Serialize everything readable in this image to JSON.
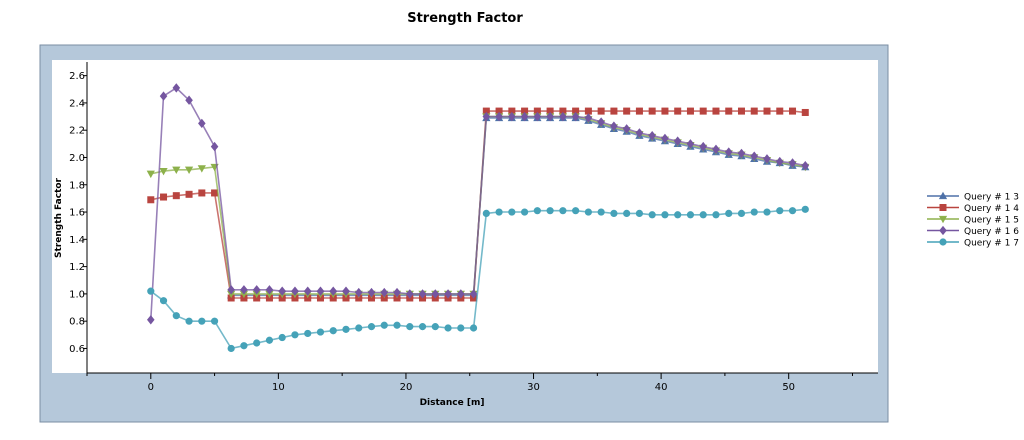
{
  "chart_data": {
    "type": "line",
    "title": "Strength Factor",
    "xlabel": "Distance [m]",
    "ylabel": "Strength Factor",
    "xlim": [
      -5,
      57
    ],
    "ylim": [
      0.42,
      2.7
    ],
    "xticks": [
      0,
      10,
      20,
      30,
      40,
      50
    ],
    "yticks": [
      0.6,
      0.8,
      1.0,
      1.2,
      1.4,
      1.6,
      1.8,
      2.0,
      2.2,
      2.4,
      2.6
    ],
    "xtick_labels": [
      "0",
      "10",
      "20",
      "30",
      "40",
      "50"
    ],
    "ytick_labels": [
      "0.6",
      "0.8",
      "1.0",
      "1.2",
      "1.4",
      "1.6",
      "1.8",
      "2.0",
      "2.2",
      "2.4",
      "2.6"
    ],
    "grid": false,
    "legend_position": "right",
    "series": [
      {
        "name": "Query # 1 3",
        "color": "#4e71a8",
        "marker": "triangle-up",
        "x": [
          6.3,
          7.3,
          8.3,
          9.3,
          10.3,
          11.3,
          12.3,
          13.3,
          14.3,
          15.3,
          16.3,
          17.3,
          18.3,
          19.3,
          20.3,
          21.3,
          22.3,
          23.3,
          24.3,
          25.3,
          26.3,
          27.3,
          28.3,
          29.3,
          30.3,
          31.3,
          32.3,
          33.3,
          34.3,
          35.3,
          36.3,
          37.3,
          38.3,
          39.3,
          40.3,
          41.3,
          42.3,
          43.3,
          44.3,
          45.3,
          46.3,
          47.3,
          48.3,
          49.3,
          50.3,
          51.3
        ],
        "y": [
          0.99,
          0.99,
          0.99,
          0.99,
          0.99,
          0.99,
          0.99,
          0.99,
          0.99,
          0.99,
          0.99,
          0.99,
          0.99,
          0.99,
          0.99,
          0.99,
          0.99,
          0.99,
          0.99,
          0.99,
          2.29,
          2.29,
          2.29,
          2.29,
          2.29,
          2.29,
          2.29,
          2.29,
          2.27,
          2.24,
          2.21,
          2.19,
          2.16,
          2.14,
          2.12,
          2.1,
          2.08,
          2.06,
          2.04,
          2.02,
          2.01,
          1.99,
          1.97,
          1.96,
          1.94,
          1.93
        ]
      },
      {
        "name": "Query # 1 4",
        "color": "#b9443f",
        "marker": "square",
        "x": [
          0,
          1,
          2,
          3,
          4,
          5,
          6.3,
          7.3,
          8.3,
          9.3,
          10.3,
          11.3,
          12.3,
          13.3,
          14.3,
          15.3,
          16.3,
          17.3,
          18.3,
          19.3,
          20.3,
          21.3,
          22.3,
          23.3,
          24.3,
          25.3,
          26.3,
          27.3,
          28.3,
          29.3,
          30.3,
          31.3,
          32.3,
          33.3,
          34.3,
          35.3,
          36.3,
          37.3,
          38.3,
          39.3,
          40.3,
          41.3,
          42.3,
          43.3,
          44.3,
          45.3,
          46.3,
          47.3,
          48.3,
          49.3,
          50.3,
          51.3
        ],
        "y": [
          1.69,
          1.71,
          1.72,
          1.73,
          1.74,
          1.74,
          0.97,
          0.97,
          0.97,
          0.97,
          0.97,
          0.97,
          0.97,
          0.97,
          0.97,
          0.97,
          0.97,
          0.97,
          0.97,
          0.97,
          0.97,
          0.97,
          0.97,
          0.97,
          0.97,
          0.97,
          2.34,
          2.34,
          2.34,
          2.34,
          2.34,
          2.34,
          2.34,
          2.34,
          2.34,
          2.34,
          2.34,
          2.34,
          2.34,
          2.34,
          2.34,
          2.34,
          2.34,
          2.34,
          2.34,
          2.34,
          2.34,
          2.34,
          2.34,
          2.34,
          2.34,
          2.33
        ]
      },
      {
        "name": "Query # 1 5",
        "color": "#8db14b",
        "marker": "triangle-down",
        "x": [
          0,
          1,
          2,
          3,
          4,
          5,
          6.3,
          7.3,
          8.3,
          9.3,
          10.3,
          11.3,
          12.3,
          13.3,
          14.3,
          15.3,
          16.3,
          17.3,
          18.3,
          19.3,
          20.3,
          21.3,
          22.3,
          23.3,
          24.3,
          25.3,
          26.3,
          27.3,
          28.3,
          29.3,
          30.3,
          31.3,
          32.3,
          33.3,
          34.3,
          35.3,
          36.3,
          37.3,
          38.3,
          39.3,
          40.3,
          41.3,
          42.3,
          43.3,
          44.3,
          45.3,
          46.3,
          47.3,
          48.3,
          49.3,
          50.3,
          51.3
        ],
        "y": [
          1.88,
          1.9,
          1.91,
          1.91,
          1.92,
          1.93,
          1.0,
          1.0,
          1.0,
          1.0,
          1.0,
          1.0,
          1.0,
          1.0,
          1.0,
          1.0,
          1.0,
          1.0,
          1.0,
          1.0,
          1.0,
          1.0,
          1.0,
          1.0,
          1.0,
          1.0,
          2.3,
          2.3,
          2.3,
          2.3,
          2.3,
          2.3,
          2.3,
          2.3,
          2.28,
          2.25,
          2.22,
          2.2,
          2.17,
          2.15,
          2.13,
          2.11,
          2.09,
          2.07,
          2.05,
          2.03,
          2.02,
          2.0,
          1.98,
          1.96,
          1.95,
          1.93
        ]
      },
      {
        "name": "Query # 1 6",
        "color": "#7556a0",
        "marker": "diamond",
        "x": [
          0,
          1,
          2,
          3,
          4,
          5,
          6.3,
          7.3,
          8.3,
          9.3,
          10.3,
          11.3,
          12.3,
          13.3,
          14.3,
          15.3,
          16.3,
          17.3,
          18.3,
          19.3,
          20.3,
          21.3,
          22.3,
          23.3,
          24.3,
          25.3,
          26.3,
          27.3,
          28.3,
          29.3,
          30.3,
          31.3,
          32.3,
          33.3,
          34.3,
          35.3,
          36.3,
          37.3,
          38.3,
          39.3,
          40.3,
          41.3,
          42.3,
          43.3,
          44.3,
          45.3,
          46.3,
          47.3,
          48.3,
          49.3,
          50.3,
          51.3
        ],
        "y": [
          0.81,
          2.45,
          2.51,
          2.42,
          2.25,
          2.08,
          1.03,
          1.03,
          1.03,
          1.03,
          1.02,
          1.02,
          1.02,
          1.02,
          1.02,
          1.02,
          1.01,
          1.01,
          1.01,
          1.01,
          1.0,
          1.0,
          1.0,
          1.0,
          1.0,
          1.0,
          2.3,
          2.3,
          2.3,
          2.3,
          2.3,
          2.3,
          2.3,
          2.3,
          2.29,
          2.26,
          2.23,
          2.21,
          2.18,
          2.16,
          2.14,
          2.12,
          2.1,
          2.08,
          2.06,
          2.04,
          2.03,
          2.01,
          1.99,
          1.97,
          1.96,
          1.94
        ]
      },
      {
        "name": "Query # 1 7",
        "color": "#45a2b8",
        "marker": "circle",
        "x": [
          0,
          1,
          2,
          3,
          4,
          5,
          6.3,
          7.3,
          8.3,
          9.3,
          10.3,
          11.3,
          12.3,
          13.3,
          14.3,
          15.3,
          16.3,
          17.3,
          18.3,
          19.3,
          20.3,
          21.3,
          22.3,
          23.3,
          24.3,
          25.3,
          26.3,
          27.3,
          28.3,
          29.3,
          30.3,
          31.3,
          32.3,
          33.3,
          34.3,
          35.3,
          36.3,
          37.3,
          38.3,
          39.3,
          40.3,
          41.3,
          42.3,
          43.3,
          44.3,
          45.3,
          46.3,
          47.3,
          48.3,
          49.3,
          50.3,
          51.3
        ],
        "y": [
          1.02,
          0.95,
          0.84,
          0.8,
          0.8,
          0.8,
          0.6,
          0.62,
          0.64,
          0.66,
          0.68,
          0.7,
          0.71,
          0.72,
          0.73,
          0.74,
          0.75,
          0.76,
          0.77,
          0.77,
          0.76,
          0.76,
          0.76,
          0.75,
          0.75,
          0.75,
          1.59,
          1.6,
          1.6,
          1.6,
          1.61,
          1.61,
          1.61,
          1.61,
          1.6,
          1.6,
          1.59,
          1.59,
          1.59,
          1.58,
          1.58,
          1.58,
          1.58,
          1.58,
          1.58,
          1.59,
          1.59,
          1.6,
          1.6,
          1.61,
          1.61,
          1.62
        ]
      }
    ]
  }
}
